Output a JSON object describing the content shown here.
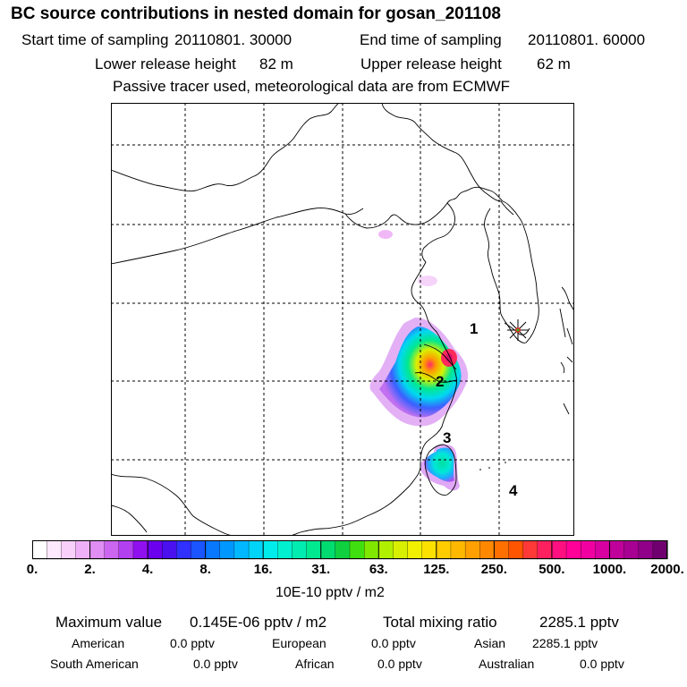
{
  "title": "BC  source contributions in nested domain for gosan_201108",
  "header": {
    "start_label": "Start time of sampling",
    "start_value": "20110801. 30000",
    "end_label": "End time of sampling",
    "end_value": "20110801. 60000",
    "lower_label": "Lower release height",
    "lower_value": "82 m",
    "upper_label": "Upper release height",
    "upper_value": "62 m",
    "note": "Passive tracer used, meteorological data are from ECMWF"
  },
  "map": {
    "region_labels": [
      "1",
      "2",
      "3",
      "4"
    ],
    "receptor_marker": "star-icon"
  },
  "colorbar": {
    "ticks": [
      "0.",
      "2.",
      "4.",
      "8.",
      "16.",
      "31.",
      "63.",
      "125.",
      "250.",
      "500.",
      "1000.",
      "2000."
    ],
    "colors": [
      "#ffffff",
      "#fde9fd",
      "#f8d0fa",
      "#efb0f7",
      "#e08df4",
      "#cc66f0",
      "#b23ff0",
      "#9110f0",
      "#6a00ee",
      "#4a10f0",
      "#3030ff",
      "#1a55ff",
      "#0878ff",
      "#0098ff",
      "#00b8ff",
      "#00d4f8",
      "#00ecec",
      "#00f0d0",
      "#00ecb0",
      "#00e890",
      "#00dc70",
      "#10d040",
      "#40e010",
      "#80e800",
      "#b0f000",
      "#d8f000",
      "#f0f000",
      "#fce000",
      "#ffcc00",
      "#ffb800",
      "#ffa000",
      "#ff8800",
      "#ff7000",
      "#ff5500",
      "#ff3838",
      "#ff2060",
      "#ff1080",
      "#ff0098",
      "#f000a0",
      "#d800a0",
      "#c0009a",
      "#a80092",
      "#900088",
      "#700070"
    ],
    "units": "10E-10 pptv / m2"
  },
  "summary": {
    "max_label": "Maximum value",
    "max_value": "0.145E-06 pptv / m2",
    "total_label": "Total mixing ratio",
    "total_value": "2285.1 pptv",
    "american_label": "American",
    "american_value": "0.0 pptv",
    "european_label": "European",
    "european_value": "0.0 pptv",
    "asian_label": "Asian",
    "asian_value": "2285.1 pptv",
    "south_american_label": "South American",
    "south_american_value": "0.0 pptv",
    "african_label": "African",
    "african_value": "0.0 pptv",
    "australian_label": "Australian",
    "australian_value": "0.0 pptv"
  }
}
